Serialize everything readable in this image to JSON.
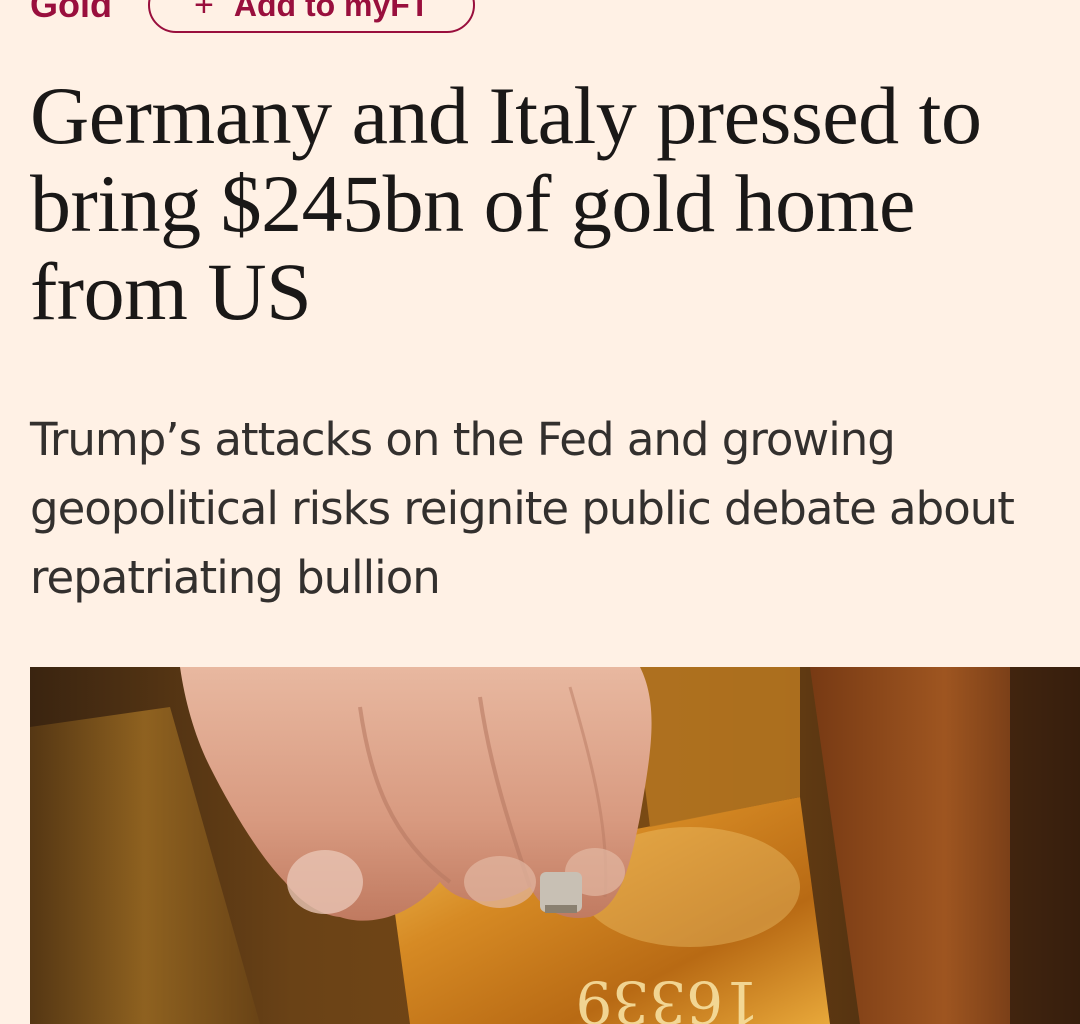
{
  "topic": {
    "label": "Gold"
  },
  "myft_button": {
    "icon": "plus-icon",
    "label": "Add to myFT"
  },
  "article": {
    "headline": "Germany and Italy pressed to bring $245bn of gold home from US",
    "standfirst": "Trump’s attacks on the Fed and growing geopolitical risks reignite public debate about repatriating bullion"
  },
  "hero_image": {
    "engraving": "16339"
  },
  "colors": {
    "page_background": "#fff1e5",
    "accent": "#990f3d",
    "headline_text": "#1a1817",
    "standfirst_text": "#33302e"
  }
}
